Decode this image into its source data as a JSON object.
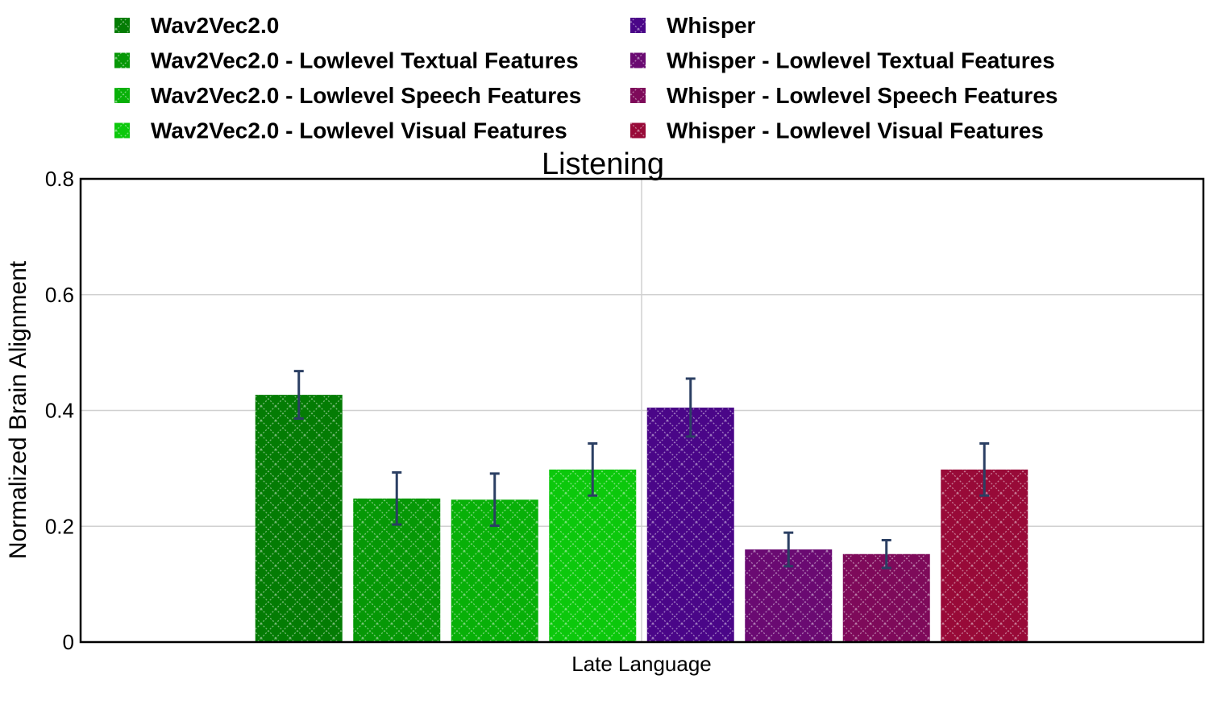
{
  "chart_data": {
    "type": "bar",
    "title": "Listening",
    "xlabel": "",
    "ylabel": "Normalized Brain Alignment",
    "ylim": [
      0,
      0.8
    ],
    "yticks": [
      0,
      0.2,
      0.4,
      0.6,
      0.8
    ],
    "ytick_labels": [
      "0",
      "0.2",
      "0.4",
      "0.6",
      "0.8"
    ],
    "categories": [
      "Late Language"
    ],
    "grid": true,
    "legend_position": "top",
    "series": [
      {
        "name": "Wav2Vec2.0",
        "values": [
          0.427
        ],
        "error": [
          0.041
        ],
        "color": "#047c04"
      },
      {
        "name": "Wav2Vec2.0 - Lowlevel Textual Features",
        "values": [
          0.248
        ],
        "error": [
          0.045
        ],
        "color": "#069806"
      },
      {
        "name": "Wav2Vec2.0 - Lowlevel Speech Features",
        "values": [
          0.246
        ],
        "error": [
          0.045
        ],
        "color": "#08b008"
      },
      {
        "name": "Wav2Vec2.0 - Lowlevel Visual Features",
        "values": [
          0.298
        ],
        "error": [
          0.045
        ],
        "color": "#0cc80c"
      },
      {
        "name": "Whisper",
        "values": [
          0.405
        ],
        "error": [
          0.05
        ],
        "color": "#4a0688"
      },
      {
        "name": "Whisper - Lowlevel Textual Features",
        "values": [
          0.16
        ],
        "error": [
          0.029
        ],
        "color": "#6a0a72"
      },
      {
        "name": "Whisper - Lowlevel Speech Features",
        "values": [
          0.152
        ],
        "error": [
          0.024
        ],
        "color": "#7e0a5a"
      },
      {
        "name": "Whisper - Lowlevel Visual Features",
        "values": [
          0.298
        ],
        "error": [
          0.045
        ],
        "color": "#980a38"
      }
    ]
  }
}
